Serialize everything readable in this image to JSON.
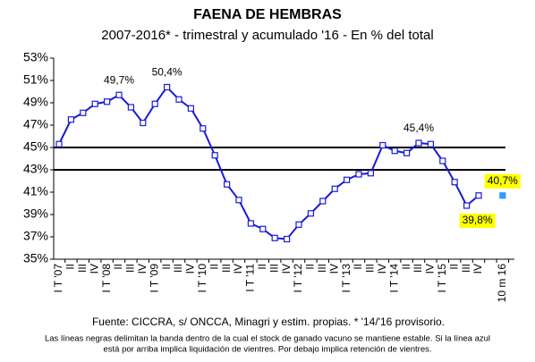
{
  "chart_data": {
    "type": "line",
    "title": "FAENA DE HEMBRAS",
    "subtitle": "2007-2016* - trimestral y acumulado '16 - En % del total",
    "categories": [
      "I T '07",
      "II",
      "III",
      "IV",
      "I T '08",
      "II",
      "III",
      "IV",
      "I T '09",
      "II",
      "III",
      "IV",
      "I T '10",
      "II",
      "III",
      "IV",
      "I T '11",
      "II",
      "III",
      "IV",
      "I T '12",
      "II",
      "III",
      "IV",
      "I T '13",
      "II",
      "III",
      "IV",
      "I T '14",
      "II",
      "III",
      "IV",
      "I T '15",
      "II",
      "III",
      "IV",
      null,
      "10 m 16"
    ],
    "series": [
      {
        "color": "#1a1ad8",
        "marker_fill": "#ffffff",
        "values": [
          45.3,
          47.5,
          48.1,
          48.9,
          49.1,
          49.7,
          48.6,
          47.2,
          48.9,
          50.4,
          49.3,
          48.5,
          46.7,
          44.3,
          41.7,
          40.3,
          38.2,
          37.7,
          36.9,
          36.8,
          38.1,
          39.1,
          40.2,
          41.3,
          42.1,
          42.6,
          42.7,
          45.2,
          44.7,
          44.5,
          45.4,
          45.3,
          43.8,
          41.9,
          39.8,
          40.7,
          null,
          null
        ],
        "value_labels": [
          null,
          null,
          null,
          null,
          null,
          "49,7%",
          null,
          null,
          null,
          "50,4%",
          null,
          null,
          null,
          null,
          null,
          null,
          null,
          null,
          null,
          null,
          null,
          null,
          null,
          null,
          null,
          null,
          null,
          null,
          null,
          null,
          "45,4%",
          null,
          null,
          null,
          "39,8%",
          null,
          null,
          null
        ],
        "label_background": "#ffff00",
        "highlighted_labels": [
          34
        ]
      },
      {
        "color": "#3399ff",
        "marker_fill": "#3399ff",
        "values": [
          null,
          null,
          null,
          null,
          null,
          null,
          null,
          null,
          null,
          null,
          null,
          null,
          null,
          null,
          null,
          null,
          null,
          null,
          null,
          null,
          null,
          null,
          null,
          null,
          null,
          null,
          null,
          null,
          null,
          null,
          null,
          null,
          null,
          null,
          null,
          null,
          null,
          40.7
        ],
        "value_labels": [
          null,
          null,
          null,
          null,
          null,
          null,
          null,
          null,
          null,
          null,
          null,
          null,
          null,
          null,
          null,
          null,
          null,
          null,
          null,
          null,
          null,
          null,
          null,
          null,
          null,
          null,
          null,
          null,
          null,
          null,
          null,
          null,
          null,
          null,
          null,
          null,
          null,
          "40,7%"
        ],
        "label_background": "#ffff00",
        "highlighted_labels": [
          37
        ]
      }
    ],
    "reference_lines": [
      45,
      43
    ],
    "ylim": [
      35,
      53
    ],
    "yticks": [
      {
        "value": 35,
        "label": "35%"
      },
      {
        "value": 37,
        "label": "37%"
      },
      {
        "value": 39,
        "label": "39%"
      },
      {
        "value": 41,
        "label": "41%"
      },
      {
        "value": 43,
        "label": "43%"
      },
      {
        "value": 45,
        "label": "45%"
      },
      {
        "value": 47,
        "label": "47%"
      },
      {
        "value": 49,
        "label": "49%"
      },
      {
        "value": 51,
        "label": "51%"
      },
      {
        "value": 53,
        "label": "53%"
      }
    ],
    "grid": false,
    "source": "Fuente: CICCRA, s/ ONCCA, Minagri y estim. propias. * '14/'16 provisorio.",
    "note": [
      "Las líneas negras delimitan la banda dentro de la cual el stock de ganado vacuno se mantiene estable. Si la línea azul",
      "está por arriba implica liquidación de vientres. Por debajo implica retención de vientres."
    ]
  }
}
